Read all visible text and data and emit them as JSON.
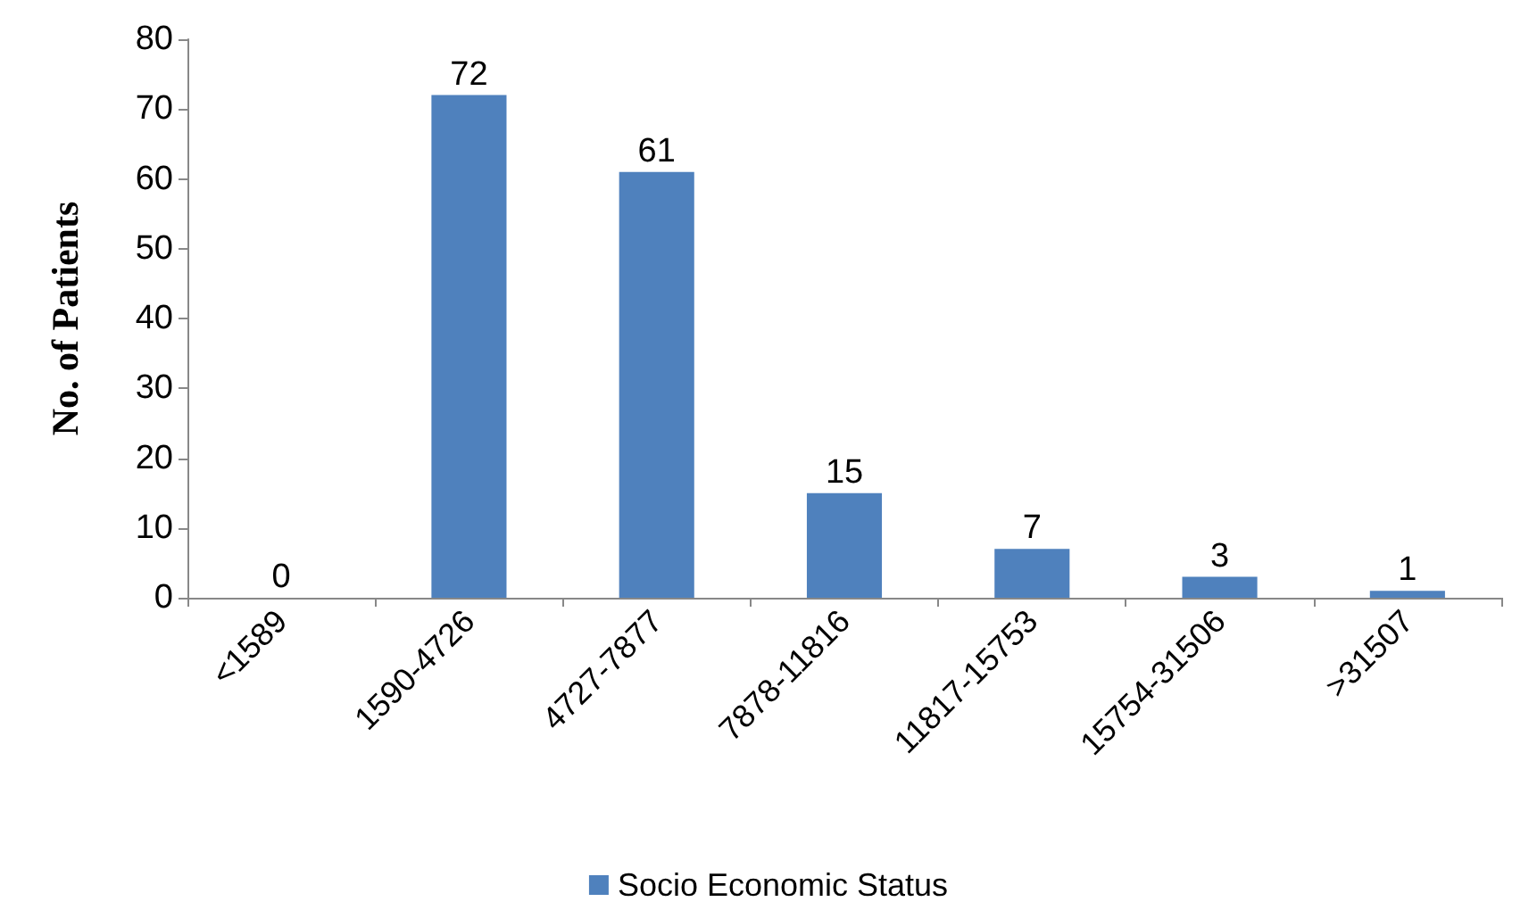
{
  "chart_data": {
    "type": "bar",
    "ylabel": "No. of Patients",
    "categories": [
      "<1589",
      "1590-4726",
      "4727-7877",
      "7878-11816",
      "11817-15753",
      "15754-31506",
      ">31507"
    ],
    "series": [
      {
        "name": "Socio Economic Status",
        "color": "#4f81bd",
        "values": [
          0,
          72,
          61,
          15,
          7,
          3,
          1
        ]
      }
    ],
    "ylim": [
      0,
      80
    ],
    "yticks": [
      0,
      10,
      20,
      30,
      40,
      50,
      60,
      70,
      80
    ],
    "grid": false,
    "legend": "bottom",
    "data_labels": true
  }
}
